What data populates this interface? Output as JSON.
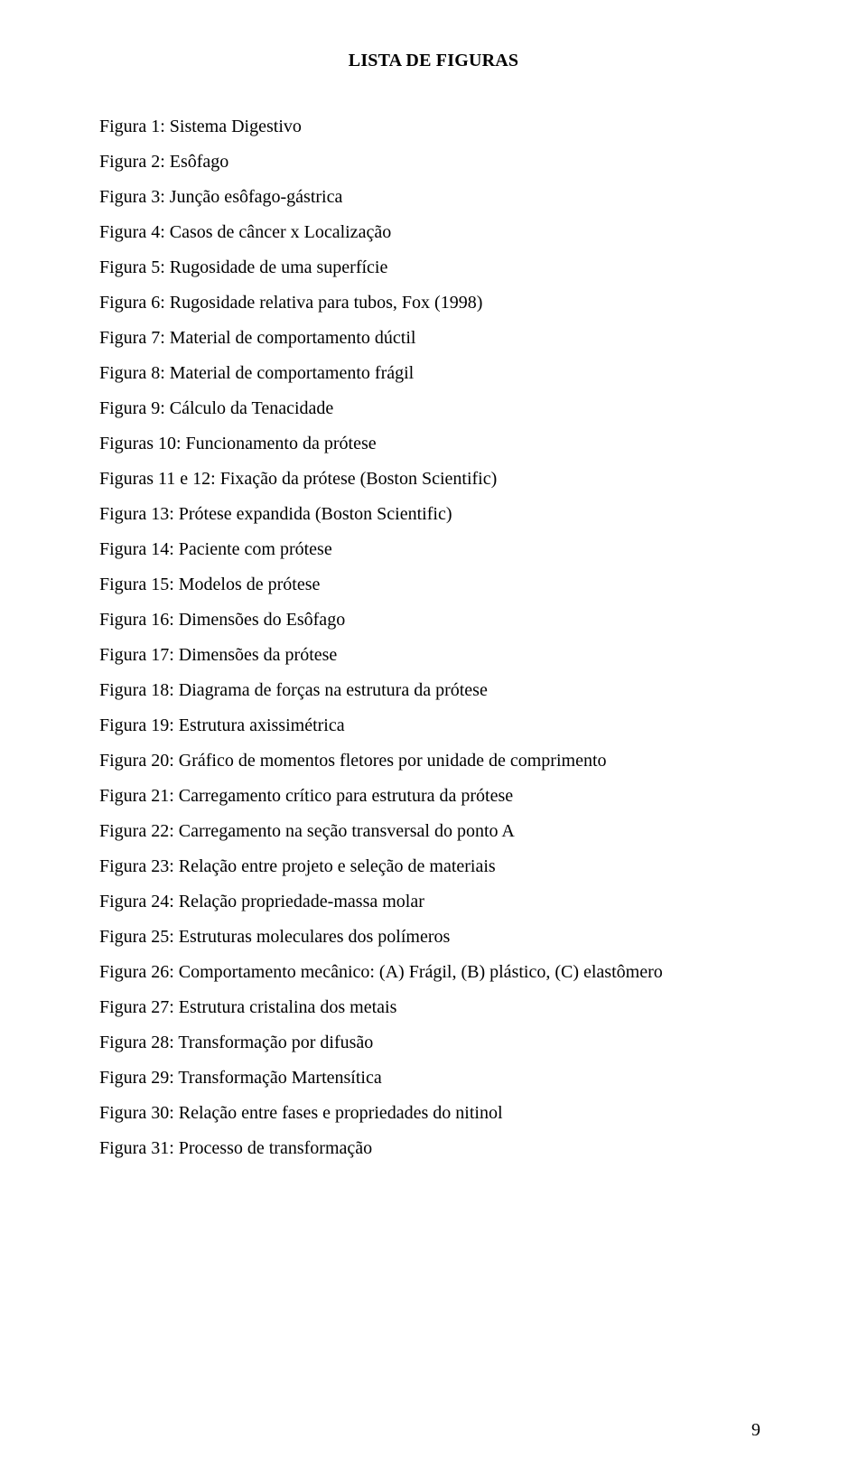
{
  "title": "LISTA DE FIGURAS",
  "entries": [
    "Figura 1: Sistema Digestivo",
    "Figura 2: Esôfago",
    "Figura 3: Junção esôfago-gástrica",
    "Figura 4: Casos de câncer x Localização",
    "Figura 5: Rugosidade de uma superfície",
    "Figura 6: Rugosidade relativa para tubos, Fox (1998)",
    "Figura 7: Material de comportamento dúctil",
    "Figura 8: Material de comportamento frágil",
    "Figura 9: Cálculo da Tenacidade",
    "Figuras 10: Funcionamento da prótese",
    "Figuras 11 e 12: Fixação da prótese (Boston Scientific)",
    "Figura 13: Prótese expandida (Boston Scientific)",
    "Figura 14: Paciente com prótese",
    "Figura 15: Modelos de prótese",
    "Figura 16: Dimensões do Esôfago",
    "Figura 17: Dimensões da prótese",
    "Figura 18: Diagrama de forças na estrutura da prótese",
    "Figura 19: Estrutura axissimétrica",
    "Figura 20: Gráfico de momentos fletores por unidade de comprimento",
    "Figura 21: Carregamento crítico para estrutura da prótese",
    "Figura 22: Carregamento na seção transversal do ponto A",
    "Figura 23: Relação entre projeto e seleção de materiais",
    "Figura 24: Relação propriedade-massa molar",
    "Figura 25: Estruturas moleculares dos polímeros",
    "Figura 26: Comportamento mecânico: (A) Frágil, (B) plástico, (C) elastômero",
    "Figura 27: Estrutura cristalina dos metais",
    "Figura 28: Transformação por difusão",
    "Figura 29: Transformação Martensítica",
    "Figura 30: Relação entre fases e propriedades do nitinol",
    "Figura 31: Processo de transformação"
  ],
  "page_number": "9"
}
